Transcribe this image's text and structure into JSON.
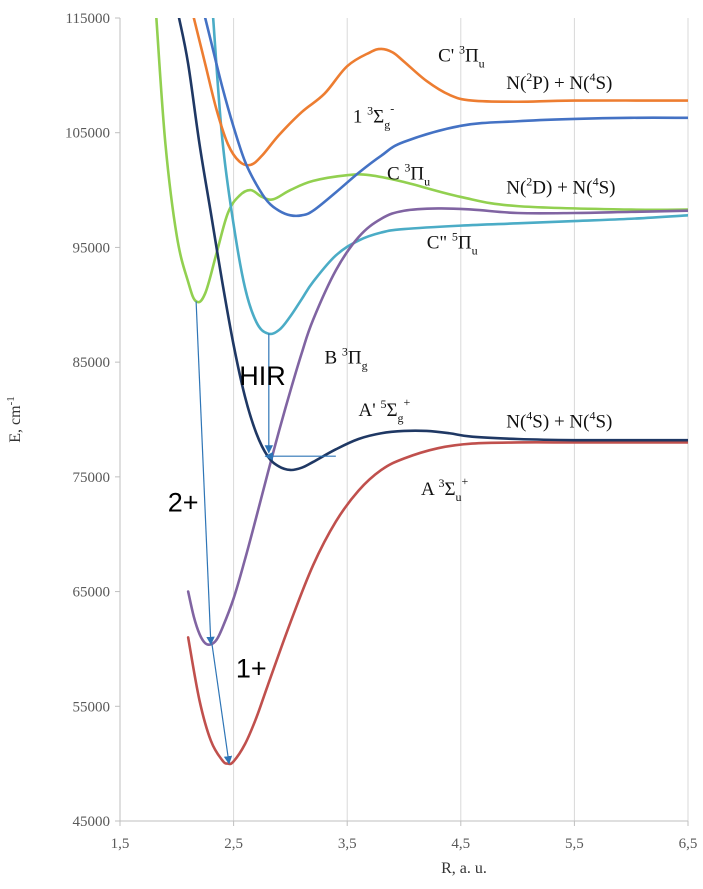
{
  "chart_data": {
    "type": "line",
    "title": "",
    "xlabel": "R, a. u.",
    "ylabel": "E, cm",
    "ylabel_sup": "-1",
    "xlim": [
      1.5,
      6.5
    ],
    "ylim": [
      45000,
      115000
    ],
    "x_ticks": [
      1.5,
      2.5,
      3.5,
      4.5,
      5.5,
      6.5
    ],
    "x_tick_labels": [
      "1,5",
      "2,5",
      "3,5",
      "4,5",
      "5,5",
      "6,5"
    ],
    "y_ticks": [
      45000,
      55000,
      65000,
      75000,
      85000,
      95000,
      105000,
      115000
    ],
    "y_tick_labels": [
      "45000",
      "55000",
      "65000",
      "75000",
      "85000",
      "95000",
      "105000",
      "115000"
    ],
    "grid": "vertical",
    "series": [
      {
        "name": "A' 5Σg+",
        "color": "#1f3864",
        "x": [
          2.02,
          2.1,
          2.2,
          2.3,
          2.4,
          2.5,
          2.6,
          2.7,
          2.8,
          2.9,
          3.0,
          3.1,
          3.2,
          3.4,
          3.6,
          3.8,
          4.0,
          4.2,
          4.4,
          4.6,
          5.0,
          5.5,
          6.0,
          6.5
        ],
        "y": [
          115000,
          111000,
          104000,
          98000,
          92000,
          86500,
          82000,
          78800,
          76800,
          75900,
          75600,
          75800,
          76300,
          77400,
          78300,
          78800,
          79000,
          79000,
          78800,
          78500,
          78300,
          78200,
          78200,
          78200
        ]
      },
      {
        "name": "1 3Σg-",
        "color": "#4472c4",
        "x": [
          2.25,
          2.3,
          2.4,
          2.5,
          2.6,
          2.7,
          2.8,
          2.9,
          3.0,
          3.1,
          3.2,
          3.4,
          3.6,
          3.8,
          4.0,
          4.5,
          5.0,
          5.5,
          6.0,
          6.5
        ],
        "y": [
          115000,
          113000,
          109000,
          105500,
          102500,
          100500,
          99000,
          98200,
          97800,
          97800,
          98200,
          99800,
          101500,
          103000,
          104200,
          105600,
          106000,
          106200,
          106300,
          106300
        ]
      },
      {
        "name": "C' 3Πu",
        "color": "#ed7d31",
        "x": [
          2.15,
          2.25,
          2.35,
          2.45,
          2.55,
          2.65,
          2.75,
          2.9,
          3.1,
          3.3,
          3.5,
          3.7,
          3.8,
          3.9,
          4.0,
          4.2,
          4.4,
          4.6,
          5.0,
          5.5,
          6.5
        ],
        "y": [
          115000,
          111000,
          107000,
          104000,
          102500,
          102200,
          103000,
          104800,
          106800,
          108400,
          110800,
          112000,
          112300,
          112000,
          111200,
          109500,
          108300,
          107800,
          107700,
          107800,
          107800
        ]
      },
      {
        "name": "C 3Πu",
        "color": "#92d050",
        "x": [
          1.82,
          1.9,
          2.0,
          2.1,
          2.17,
          2.25,
          2.35,
          2.45,
          2.55,
          2.65,
          2.75,
          2.85,
          3.0,
          3.2,
          3.5,
          3.7,
          4.0,
          4.5,
          5.0,
          6.0,
          6.5
        ],
        "y": [
          115000,
          104000,
          96000,
          92000,
          90300,
          91000,
          94500,
          98000,
          99500,
          100000,
          99400,
          99200,
          100000,
          100800,
          101300,
          101300,
          100700,
          99400,
          98600,
          98300,
          98300
        ]
      },
      {
        "name": "C'' 5Πu",
        "color": "#4bacc6",
        "x": [
          2.32,
          2.4,
          2.5,
          2.6,
          2.7,
          2.8,
          2.9,
          3.0,
          3.1,
          3.2,
          3.4,
          3.6,
          3.8,
          4.0,
          4.5,
          5.0,
          5.5,
          6.0,
          6.5
        ],
        "y": [
          115000,
          104500,
          97000,
          91500,
          88500,
          87500,
          87800,
          89000,
          90500,
          92000,
          94300,
          95600,
          96300,
          96600,
          96900,
          97100,
          97300,
          97500,
          97800
        ]
      },
      {
        "name": "B 3Πg",
        "color": "#8064a2",
        "x": [
          2.1,
          2.15,
          2.2,
          2.25,
          2.3,
          2.35,
          2.4,
          2.5,
          2.6,
          2.7,
          2.8,
          2.9,
          3.0,
          3.1,
          3.2,
          3.4,
          3.6,
          3.8,
          4.0,
          4.3,
          4.6,
          5.0,
          5.5,
          6.0,
          6.5
        ],
        "y": [
          65000,
          62800,
          61300,
          60500,
          60400,
          60800,
          61800,
          64400,
          67800,
          71500,
          75300,
          79000,
          82500,
          85800,
          88700,
          93000,
          95900,
          97500,
          98200,
          98400,
          98300,
          98000,
          98000,
          98100,
          98200
        ]
      },
      {
        "name": "A 3Σu+",
        "color": "#c0504d",
        "x": [
          2.1,
          2.2,
          2.3,
          2.4,
          2.45,
          2.5,
          2.6,
          2.7,
          2.8,
          3.0,
          3.2,
          3.4,
          3.6,
          3.8,
          4.0,
          4.3,
          4.6,
          5.0,
          5.5,
          6.0,
          6.5
        ],
        "y": [
          61000,
          55500,
          52000,
          50300,
          50000,
          50200,
          51700,
          54000,
          56800,
          62300,
          67300,
          71100,
          73800,
          75600,
          76600,
          77500,
          77900,
          78000,
          78000,
          78000,
          78000
        ]
      }
    ],
    "arrows": [
      {
        "label": "2+",
        "from": [
          2.17,
          90300
        ],
        "to": [
          2.3,
          60400
        ]
      },
      {
        "label": "1+",
        "from": [
          2.31,
          60400
        ],
        "to": [
          2.46,
          50000
        ]
      },
      {
        "label": "HIR",
        "from": [
          2.81,
          87500
        ],
        "to": [
          2.81,
          77100
        ]
      },
      {
        "label": "",
        "from": [
          3.4,
          76800
        ],
        "to": [
          2.78,
          76800
        ]
      }
    ],
    "state_labels": [
      {
        "text": "C' ",
        "sym": "3",
        "greek": "Π",
        "sub": "u",
        "sup2": "",
        "x": 4.3,
        "y": 111200
      },
      {
        "text": "N(",
        "sym": "2",
        "greek": "P) + N(",
        "sub": "",
        "sup2": "4",
        "tail": "S)",
        "x": 4.9,
        "y": 108800
      },
      {
        "text": "1 ",
        "sym": "3",
        "greek": "Σ",
        "sub": "g",
        "sup2": "-",
        "x": 3.55,
        "y": 105900
      },
      {
        "text": "C ",
        "sym": "3",
        "greek": "Π",
        "sub": "u",
        "sup2": "",
        "x": 3.85,
        "y": 100900
      },
      {
        "text": "N(",
        "sym": "2",
        "greek": "D) + N(",
        "sub": "",
        "sup2": "4",
        "tail": "S)",
        "x": 4.9,
        "y": 99700
      },
      {
        "text": "C\" ",
        "sym": "5",
        "greek": "Π",
        "sub": "u",
        "sup2": "",
        "x": 4.2,
        "y": 94900
      },
      {
        "text": "B ",
        "sym": "3",
        "greek": "Π",
        "sub": "g",
        "sup2": "",
        "x": 3.3,
        "y": 84900
      },
      {
        "text": "A' ",
        "sym": "5",
        "greek": "Σ",
        "sub": "g",
        "sup2": "+",
        "x": 3.6,
        "y": 80300
      },
      {
        "text": "N(",
        "sym": "4",
        "greek": "S) + N(",
        "sub": "",
        "sup2": "4",
        "tail": "S)",
        "x": 4.9,
        "y": 79300
      },
      {
        "text": "A ",
        "sym": "3",
        "greek": "Σ",
        "sub": "u",
        "sup2": "+",
        "x": 4.15,
        "y": 73400
      }
    ],
    "big_labels": [
      {
        "text": "HIR",
        "x": 2.55,
        "y": 83000
      },
      {
        "text": "2+",
        "x": 1.92,
        "y": 72000
      },
      {
        "text": "1+",
        "x": 2.52,
        "y": 57500
      }
    ]
  }
}
